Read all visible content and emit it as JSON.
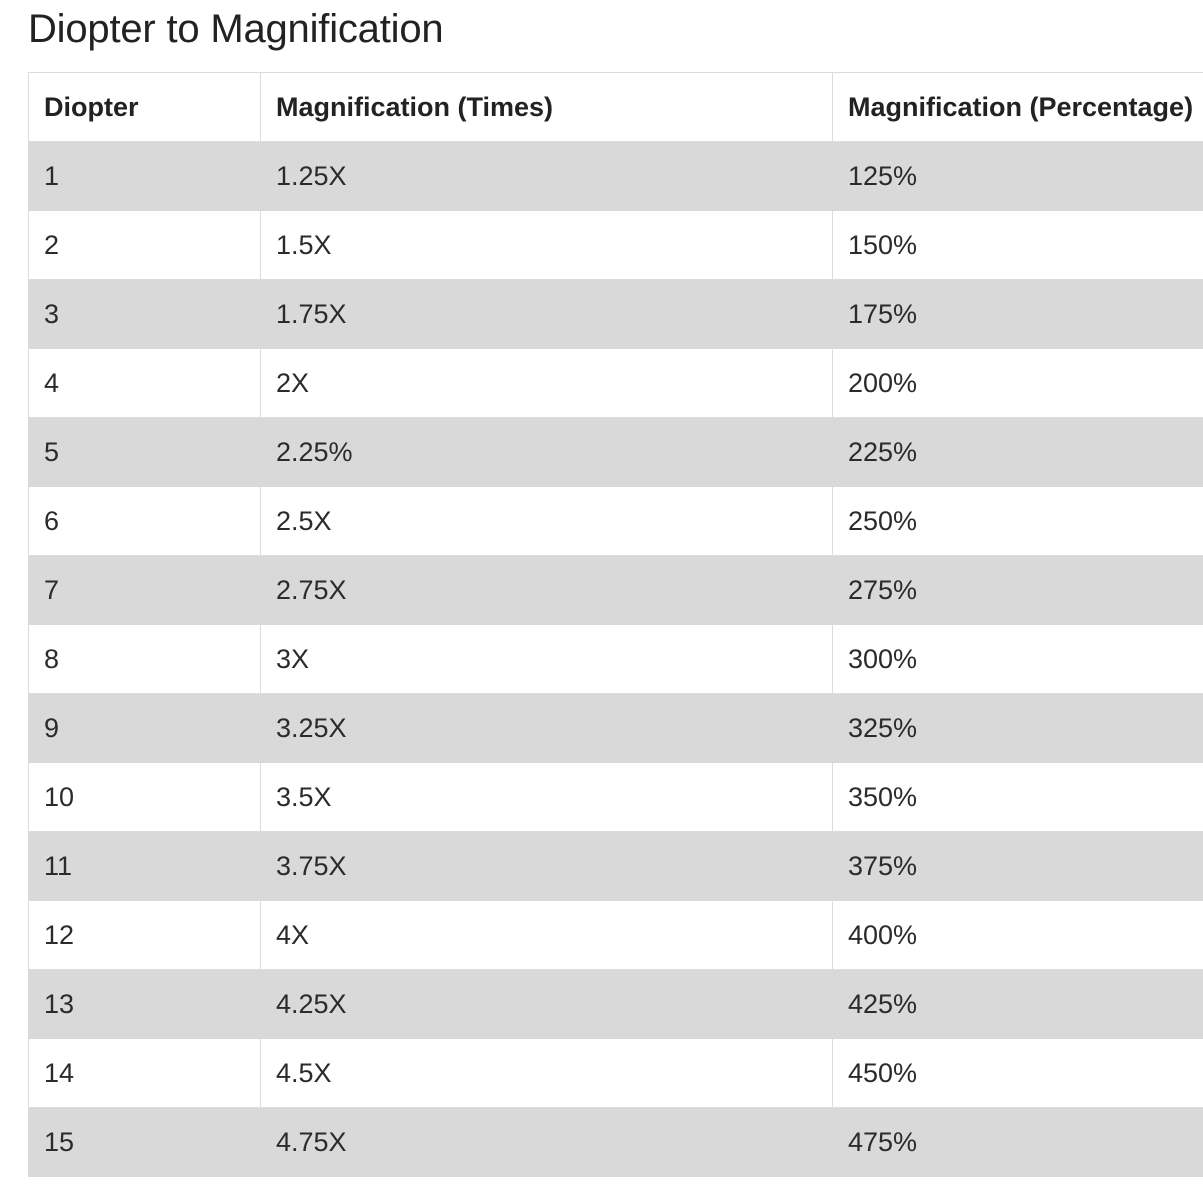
{
  "page": {
    "title": "Diopter to Magnification"
  },
  "table": {
    "columns": [
      "Diopter",
      "Magnification (Times)",
      "Magnification (Percentage)"
    ],
    "rows": [
      [
        "1",
        "1.25X",
        "125%"
      ],
      [
        "2",
        "1.5X",
        "150%"
      ],
      [
        "3",
        "1.75X",
        "175%"
      ],
      [
        "4",
        "2X",
        "200%"
      ],
      [
        "5",
        "2.25%",
        "225%"
      ],
      [
        "6",
        "2.5X",
        "250%"
      ],
      [
        "7",
        "2.75X",
        "275%"
      ],
      [
        "8",
        "3X",
        "300%"
      ],
      [
        "9",
        "3.25X",
        "325%"
      ],
      [
        "10",
        "3.5X",
        "350%"
      ],
      [
        "11",
        "3.75X",
        "375%"
      ],
      [
        "12",
        "4X",
        "400%"
      ],
      [
        "13",
        "4.25X",
        "425%"
      ],
      [
        "14",
        "4.5X",
        "450%"
      ],
      [
        "15",
        "4.75X",
        "475%"
      ]
    ]
  },
  "colors": {
    "stripe": "#d9d9d9",
    "row_alt": "#ffffff",
    "border": "#dcdcdc",
    "text": "#2b2b2b",
    "title": "#222222"
  }
}
